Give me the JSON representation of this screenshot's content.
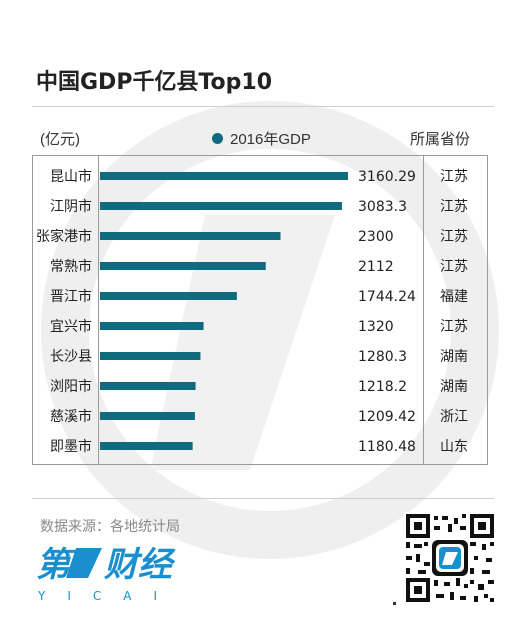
{
  "title": "中国GDP千亿县Top10",
  "unit_label": "(亿元)",
  "legend_label": "2016年GDP",
  "province_header": "所属省份",
  "source": "数据来源：各地统计局",
  "brand": {
    "name": "第一财经",
    "latin": "YICAI"
  },
  "colors": {
    "bar": "#0f6b7d",
    "watermark": "#ececec"
  },
  "chart_data": {
    "type": "bar",
    "orientation": "horizontal",
    "title": "中国GDP千亿县Top10",
    "unit": "(亿元)",
    "categories": [
      "昆山市",
      "江阴市",
      "张家港市",
      "常熟市",
      "晋江市",
      "宜兴市",
      "长沙县",
      "浏阳市",
      "慈溪市",
      "即墨市"
    ],
    "series": [
      {
        "name": "2016年GDP",
        "values": [
          3160.29,
          3083.3,
          2300,
          2112,
          1744.24,
          1320,
          1280.3,
          1218.2,
          1209.42,
          1180.48
        ],
        "labels": [
          "3160.29",
          "3083.3",
          "2300",
          "2112",
          "1744.24",
          "1320",
          "1280.3",
          "1218.2",
          "1209.42",
          "1180.48"
        ]
      }
    ],
    "provinces": [
      "江苏",
      "江苏",
      "江苏",
      "江苏",
      "福建",
      "江苏",
      "湖南",
      "湖南",
      "浙江",
      "山东"
    ],
    "legend_position": "top-center",
    "grid": false
  }
}
